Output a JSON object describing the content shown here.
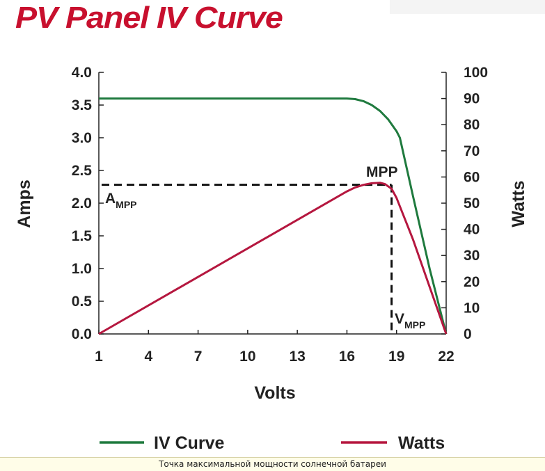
{
  "caption": "Точка максимальной мощности солнечной батареи",
  "chart_data": {
    "type": "line",
    "title": "PV Panel IV Curve",
    "xlabel": "Volts",
    "ylabel": "Amps",
    "y2label": "Watts",
    "xlim": [
      1,
      22
    ],
    "ylim": [
      0,
      4.0
    ],
    "y2lim": [
      0,
      100
    ],
    "xticks": [
      "1",
      "4",
      "7",
      "10",
      "13",
      "16",
      "19",
      "22"
    ],
    "yticks": [
      "0.0",
      "0.5",
      "1.0",
      "1.5",
      "2.0",
      "2.5",
      "3.0",
      "3.5",
      "4.0"
    ],
    "y2ticks": [
      "0",
      "10",
      "20",
      "30",
      "40",
      "50",
      "60",
      "70",
      "80",
      "90",
      "100"
    ],
    "grid": false,
    "legend": "bottom",
    "series": [
      {
        "name": "IV Curve",
        "axis": "left",
        "color": "#1f7a3e",
        "x": [
          1,
          16,
          16.5,
          17,
          17.5,
          18,
          18.5,
          19,
          19.2,
          20,
          21,
          22
        ],
        "y": [
          3.6,
          3.6,
          3.59,
          3.56,
          3.5,
          3.41,
          3.28,
          3.1,
          3.0,
          2.1,
          1.0,
          0.0
        ]
      },
      {
        "name": "Watts",
        "axis": "right",
        "color": "#b5173f",
        "x": [
          1,
          16,
          16.5,
          17,
          17.5,
          18,
          18.3,
          18.7,
          19,
          20,
          21,
          22
        ],
        "y": [
          0,
          54.5,
          56,
          57,
          57.6,
          57.8,
          57.3,
          55.5,
          52,
          36,
          18,
          0
        ]
      }
    ],
    "annotations": {
      "mpp": {
        "label": "MPP",
        "x": 18.7,
        "amps": 2.28
      },
      "a_mpp": {
        "main": "A",
        "sub": "MPP"
      },
      "v_mpp": {
        "main": "V",
        "sub": "MPP"
      }
    }
  }
}
